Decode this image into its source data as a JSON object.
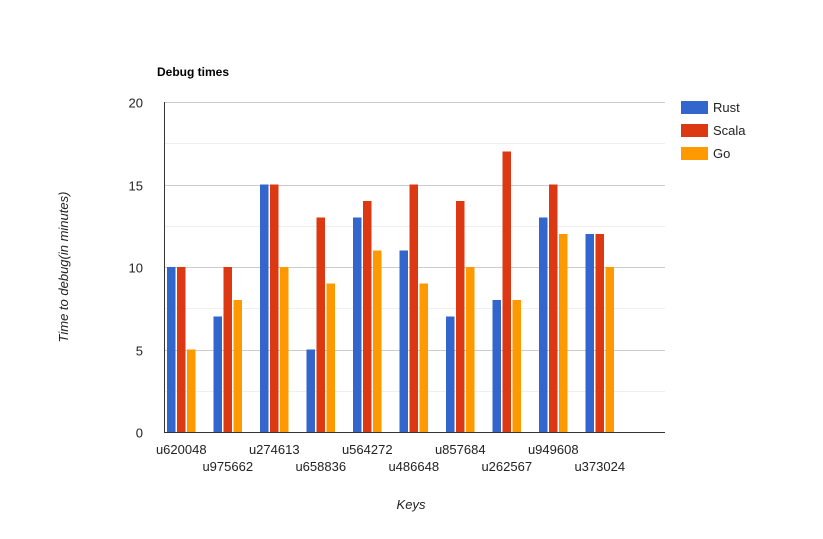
{
  "chart_data": {
    "type": "bar",
    "title": "Debug times",
    "xlabel": "Keys",
    "ylabel": "Time to debug(in minutes)",
    "ylim": [
      0,
      20
    ],
    "yticks": [
      0,
      5,
      10,
      15,
      20
    ],
    "grid": true,
    "legend_position": "right",
    "categories": [
      "u620048",
      "u975662",
      "u274613",
      "u658836",
      "u564272",
      "u486648",
      "u857684",
      "u262567",
      "u949608",
      "u373024"
    ],
    "series": [
      {
        "name": "Rust",
        "color": "#3366cc",
        "values": [
          10,
          7,
          15,
          5,
          13,
          11,
          7,
          8,
          13,
          12
        ]
      },
      {
        "name": "Scala",
        "color": "#dc3912",
        "values": [
          10,
          10,
          15,
          13,
          14,
          15,
          14,
          17,
          15,
          12
        ]
      },
      {
        "name": "Go",
        "color": "#ff9900",
        "values": [
          5,
          8,
          10,
          9,
          11,
          9,
          10,
          8,
          12,
          10
        ]
      }
    ]
  }
}
